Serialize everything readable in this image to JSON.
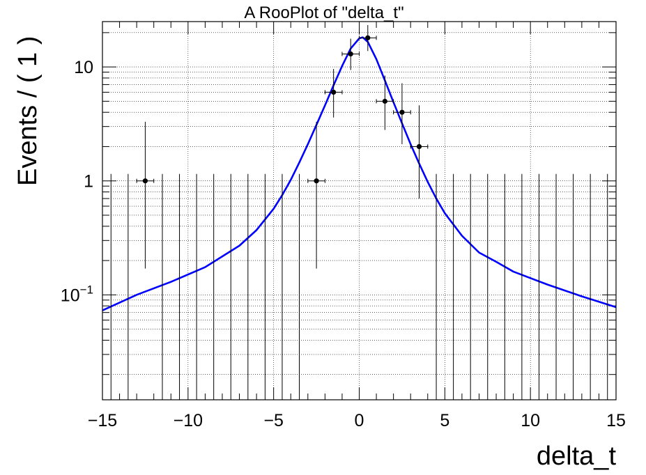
{
  "chart_data": {
    "type": "scatter",
    "title": "A RooPlot of \"delta_t\"",
    "xlabel": "delta_t",
    "ylabel": "Events / ( 1 )",
    "xlim": [
      -15,
      15
    ],
    "ylim": [
      0.012,
      25
    ],
    "yscale": "log",
    "grid": true,
    "x_ticks": [
      -15,
      -10,
      -5,
      0,
      5,
      10,
      15
    ],
    "x_tick_labels": [
      "−15",
      "−10",
      "−5",
      "0",
      "5",
      "10",
      "15"
    ],
    "y_ticks": [
      {
        "value": 10,
        "label": "10"
      },
      {
        "value": 1,
        "label": "1"
      },
      {
        "value": 0.1,
        "base": "10",
        "exp": "−1"
      }
    ],
    "series": [
      {
        "kind": "data-points",
        "points": [
          {
            "x": -12.5,
            "y": 1,
            "err_low": 0.83,
            "err_high": 2.3
          },
          {
            "x": -2.5,
            "y": 1,
            "err_low": 0.83,
            "err_high": 2.3
          },
          {
            "x": -1.5,
            "y": 6,
            "err_low": 2.4,
            "err_high": 3.6
          },
          {
            "x": -0.5,
            "y": 13,
            "err_low": 3.6,
            "err_high": 4.7
          },
          {
            "x": 0.5,
            "y": 18,
            "err_low": 4.2,
            "err_high": 5.3
          },
          {
            "x": 1.5,
            "y": 5,
            "err_low": 2.2,
            "err_high": 3.4
          },
          {
            "x": 2.5,
            "y": 4,
            "err_low": 1.9,
            "err_high": 3.2
          },
          {
            "x": 3.5,
            "y": 2,
            "err_low": 1.3,
            "err_high": 2.6
          }
        ],
        "zero_bins": [
          -14.5,
          -13.5,
          -11.5,
          -10.5,
          -9.5,
          -8.5,
          -7.5,
          -6.5,
          -5.5,
          -4.5,
          -3.5,
          4.5,
          5.5,
          6.5,
          7.5,
          8.5,
          9.5,
          10.5,
          11.5,
          12.5,
          13.5,
          14.5
        ],
        "zero_bin_err_high": 1.15,
        "color": "#000000"
      },
      {
        "kind": "model-curve",
        "color": "#0000ff",
        "x": [
          -15,
          -13,
          -11,
          -9,
          -7,
          -6,
          -5,
          -4.5,
          -4,
          -3.5,
          -3,
          -2.5,
          -2,
          -1.5,
          -1,
          -0.5,
          0,
          0.2,
          0.5,
          1,
          1.5,
          2,
          2.5,
          3,
          3.5,
          4,
          4.5,
          5,
          6,
          7,
          8,
          9,
          11,
          13,
          15
        ],
        "y": [
          0.073,
          0.1,
          0.13,
          0.175,
          0.27,
          0.37,
          0.57,
          0.75,
          1.02,
          1.45,
          2.1,
          3.1,
          4.6,
          6.9,
          10.2,
          14.5,
          17.8,
          18.2,
          16.6,
          11.7,
          7.6,
          4.9,
          3.2,
          2.1,
          1.42,
          0.98,
          0.7,
          0.52,
          0.33,
          0.235,
          0.195,
          0.16,
          0.123,
          0.097,
          0.078
        ]
      }
    ]
  }
}
